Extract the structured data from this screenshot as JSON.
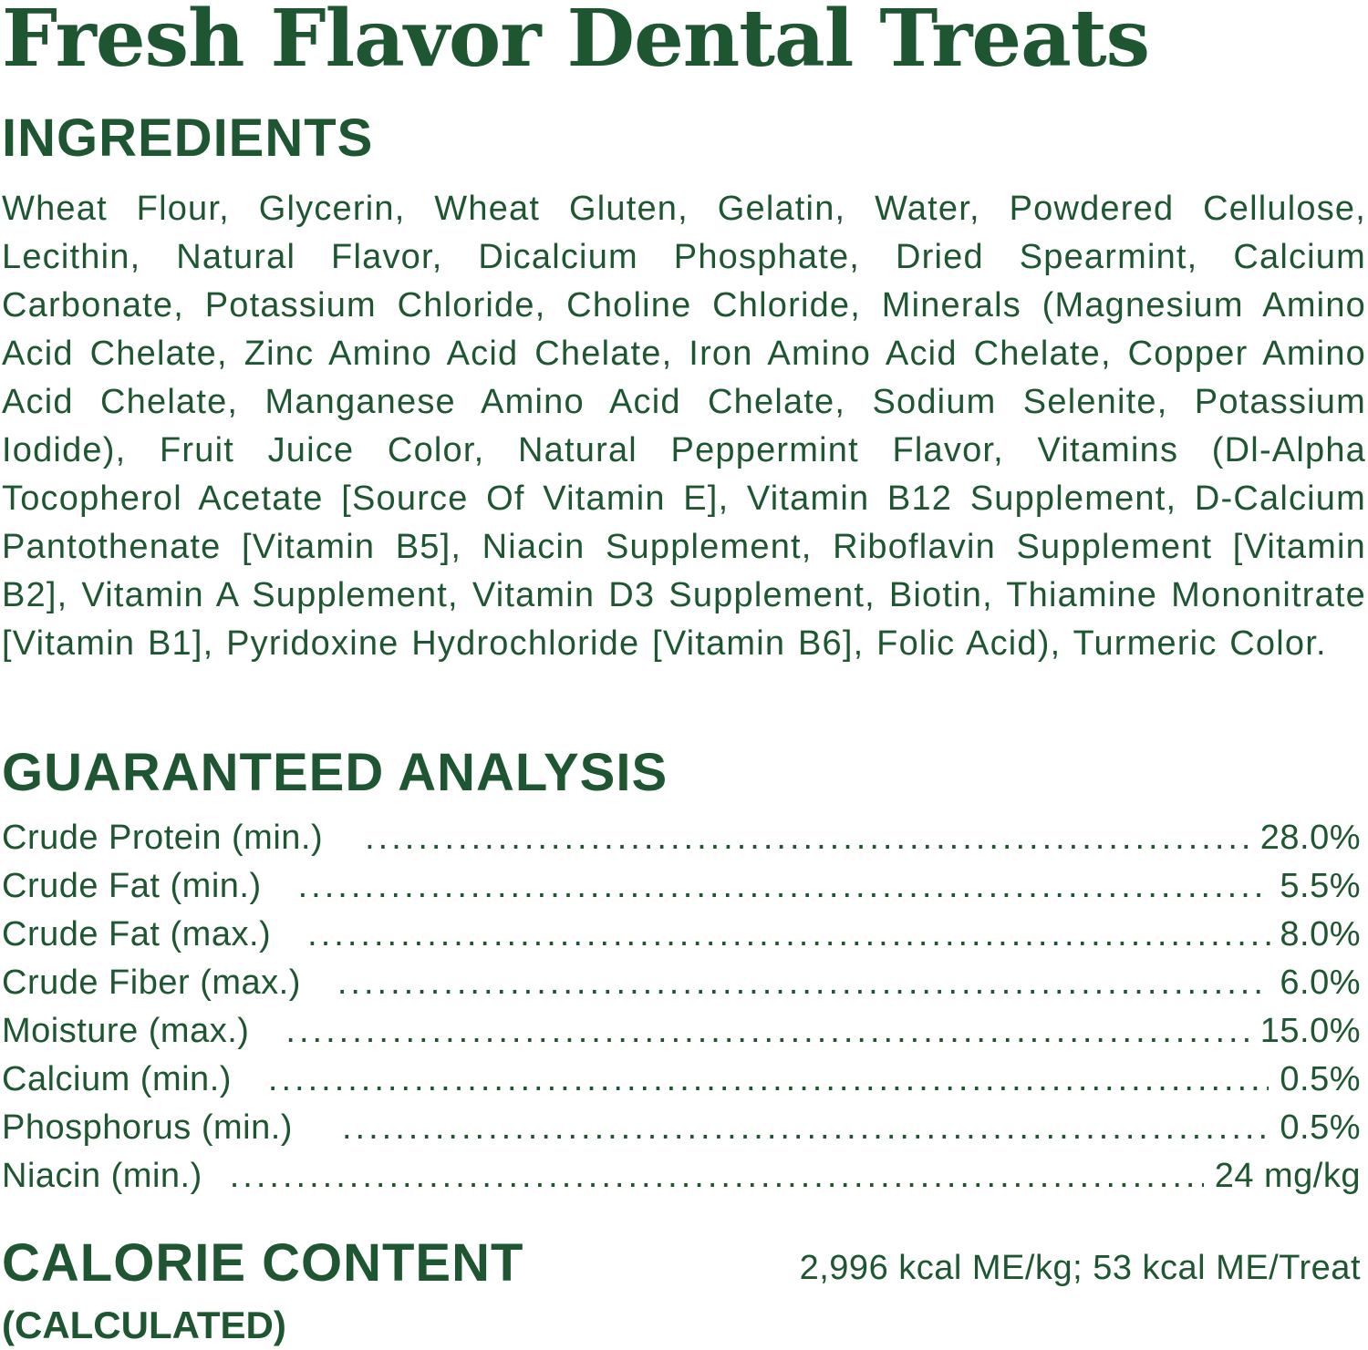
{
  "title": "Fresh Flavor Dental Treats",
  "ingredients": {
    "heading": "INGREDIENTS",
    "text": "Wheat Flour, Glycerin, Wheat Gluten, Gelatin, Water, Powdered Cellulose, Lecithin, Natural Flavor, Dicalcium Phosphate, Dried Spearmint, Calcium Carbonate, Potassium Chloride, Choline Chloride, Minerals (Magnesium Amino Acid Chelate, Zinc Amino Acid Chelate, Iron Amino Acid Chelate, Copper Amino Acid Chelate, Manganese Amino Acid Chelate, Sodium Selenite, Potassium Iodide), Fruit Juice Color, Natural Peppermint Flavor, Vitamins (Dl-Alpha Tocopherol Acetate [Source Of Vitamin E], Vitamin B12 Supplement, D-Calcium Pantothenate [Vitamin B5], Niacin Supplement, Riboflavin Supplement [Vitamin B2], Vitamin A Supplement, Vitamin D3 Supplement, Biotin, Thiamine Mononitrate [Vitamin B1], Pyridoxine Hydrochloride [Vitamin B6], Folic Acid), Turmeric Color."
  },
  "analysis": {
    "heading": "GUARANTEED ANALYSIS",
    "rows": [
      {
        "label": "Crude Protein (min.)",
        "value": "28.0%"
      },
      {
        "label": "Crude Fat (min.)",
        "value": "5.5%"
      },
      {
        "label": "Crude Fat (max.)",
        "value": "8.0%"
      },
      {
        "label": "Crude Fiber (max.)",
        "value": "6.0%"
      },
      {
        "label": "Moisture (max.)",
        "value": "15.0%"
      },
      {
        "label": "Calcium (min.)",
        "value": "0.5%"
      },
      {
        "label": "Phosphorus (min.)",
        "value": "0.5%"
      },
      {
        "label": "Niacin (min.)",
        "value": "24 mg/kg"
      }
    ]
  },
  "calorie": {
    "heading": "CALORIE CONTENT",
    "subheading": "(CALCULATED)",
    "value": "2,996 kcal ME/kg; 53 kcal ME/Treat"
  },
  "colors": {
    "text": "#1e5631",
    "background": "#ffffff"
  }
}
